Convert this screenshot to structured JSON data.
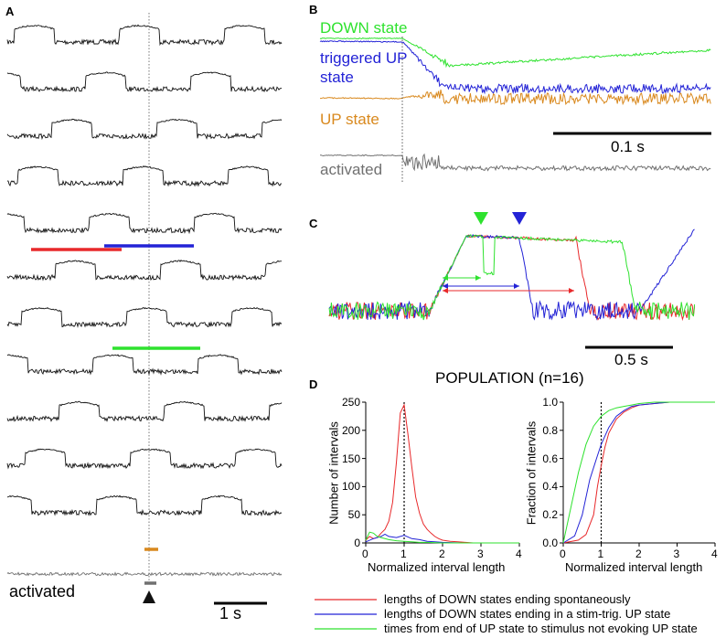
{
  "panels": {
    "a": "A",
    "b": "B",
    "c": "C",
    "d": "D"
  },
  "panel_a": {
    "activated_label": "activated",
    "scale_label": "1 s"
  },
  "panel_b": {
    "down_state": "DOWN state",
    "triggered_up_line1": "triggered UP",
    "triggered_up_line2": "state",
    "up_state": "UP state",
    "scale_label": "0.1 s",
    "activated": "activated"
  },
  "panel_c": {
    "scale_label": "0.5 s"
  },
  "population_title": "POPULATION (n=16)",
  "colors": {
    "red": "#e8292b",
    "blue": "#2323d6",
    "green": "#2ee22e",
    "orange": "#d9891e",
    "gray": "#707070"
  },
  "chart_data": [
    {
      "type": "line",
      "title": "",
      "xlabel": "Normalized interval length",
      "ylabel": "Number of intervals",
      "xlim": [
        0,
        4
      ],
      "ylim": [
        0,
        260
      ],
      "xticks": [
        "0",
        "1",
        "2",
        "3",
        "4"
      ],
      "yticks": [
        "0",
        "50",
        "100",
        "150",
        "200",
        "250"
      ],
      "reference_line_x": 1,
      "series": [
        {
          "name": "lengths of DOWN states ending spontaneously",
          "color": "#e8292b",
          "x": [
            0,
            0.1,
            0.2,
            0.3,
            0.4,
            0.5,
            0.6,
            0.7,
            0.8,
            0.9,
            1.0,
            1.1,
            1.2,
            1.3,
            1.4,
            1.5,
            1.6,
            1.7,
            1.8,
            1.9,
            2.0,
            2.2,
            2.4,
            2.6,
            2.8,
            3.0,
            3.5,
            4.0
          ],
          "y": [
            5,
            12,
            8,
            10,
            18,
            25,
            40,
            75,
            150,
            240,
            255,
            200,
            140,
            85,
            55,
            35,
            25,
            18,
            12,
            8,
            5,
            3,
            2,
            1,
            0,
            0,
            0,
            0
          ]
        },
        {
          "name": "lengths of DOWN states ending in a stim-trig. UP state",
          "color": "#2323d6",
          "x": [
            0,
            0.2,
            0.4,
            0.5,
            0.6,
            0.8,
            1.0,
            1.2,
            1.4,
            1.6,
            1.8,
            2.0,
            2.5,
            3.0,
            4.0
          ],
          "y": [
            2,
            8,
            12,
            16,
            12,
            10,
            14,
            8,
            6,
            3,
            2,
            1,
            0,
            0,
            0
          ]
        },
        {
          "name": "times from end of UP state to stimulus not evoking UP state",
          "color": "#2ee22e",
          "x": [
            0,
            0.1,
            0.2,
            0.3,
            0.4,
            0.6,
            0.8,
            1.0,
            1.2,
            1.4,
            1.6,
            2.0,
            2.5,
            3.0,
            4.0
          ],
          "y": [
            5,
            20,
            18,
            12,
            10,
            6,
            4,
            3,
            2,
            1,
            1,
            0,
            0,
            0,
            0
          ]
        }
      ]
    },
    {
      "type": "line",
      "title": "",
      "xlabel": "Normalized interval length",
      "ylabel": "Fraction of intervals",
      "xlim": [
        0,
        4
      ],
      "ylim": [
        0,
        1.0
      ],
      "xticks": [
        "0",
        "1",
        "2",
        "3",
        "4"
      ],
      "yticks": [
        "0.0",
        "0.2",
        "0.4",
        "0.6",
        "0.8",
        "1.0"
      ],
      "reference_line_x": 1,
      "series": [
        {
          "name": "lengths of DOWN states ending spontaneously",
          "color": "#e8292b",
          "x": [
            0,
            0.4,
            0.6,
            0.8,
            0.9,
            1.0,
            1.1,
            1.2,
            1.4,
            1.6,
            1.8,
            2.0,
            2.4,
            2.8,
            3.2,
            4.0
          ],
          "y": [
            0,
            0.02,
            0.06,
            0.2,
            0.4,
            0.55,
            0.68,
            0.78,
            0.88,
            0.93,
            0.96,
            0.98,
            0.99,
            1.0,
            1.0,
            1.0
          ]
        },
        {
          "name": "lengths of DOWN states ending in a stim-trig. UP state",
          "color": "#2323d6",
          "x": [
            0,
            0.3,
            0.5,
            0.7,
            0.9,
            1.0,
            1.2,
            1.4,
            1.6,
            1.8,
            2.0,
            2.4,
            2.8,
            3.2,
            4.0
          ],
          "y": [
            0,
            0.05,
            0.2,
            0.45,
            0.62,
            0.7,
            0.82,
            0.9,
            0.94,
            0.97,
            0.98,
            0.99,
            1.0,
            1.0,
            1.0
          ]
        },
        {
          "name": "times from end of UP state to stimulus not evoking UP state",
          "color": "#2ee22e",
          "x": [
            0,
            0.2,
            0.4,
            0.6,
            0.8,
            1.0,
            1.2,
            1.4,
            1.6,
            1.8,
            2.0,
            2.4,
            2.8,
            3.2,
            4.0
          ],
          "y": [
            0,
            0.25,
            0.5,
            0.7,
            0.83,
            0.9,
            0.94,
            0.96,
            0.97,
            0.98,
            0.99,
            1.0,
            1.0,
            1.0,
            1.0
          ]
        }
      ]
    }
  ],
  "legend": {
    "items": [
      {
        "label": "lengths of DOWN states ending spontaneously",
        "color": "#e8292b"
      },
      {
        "label": "lengths of DOWN states ending in a stim-trig. UP state",
        "color": "#2323d6"
      },
      {
        "label": "times from end of UP state to stimulus not evoking UP state",
        "color": "#2ee22e"
      }
    ]
  }
}
